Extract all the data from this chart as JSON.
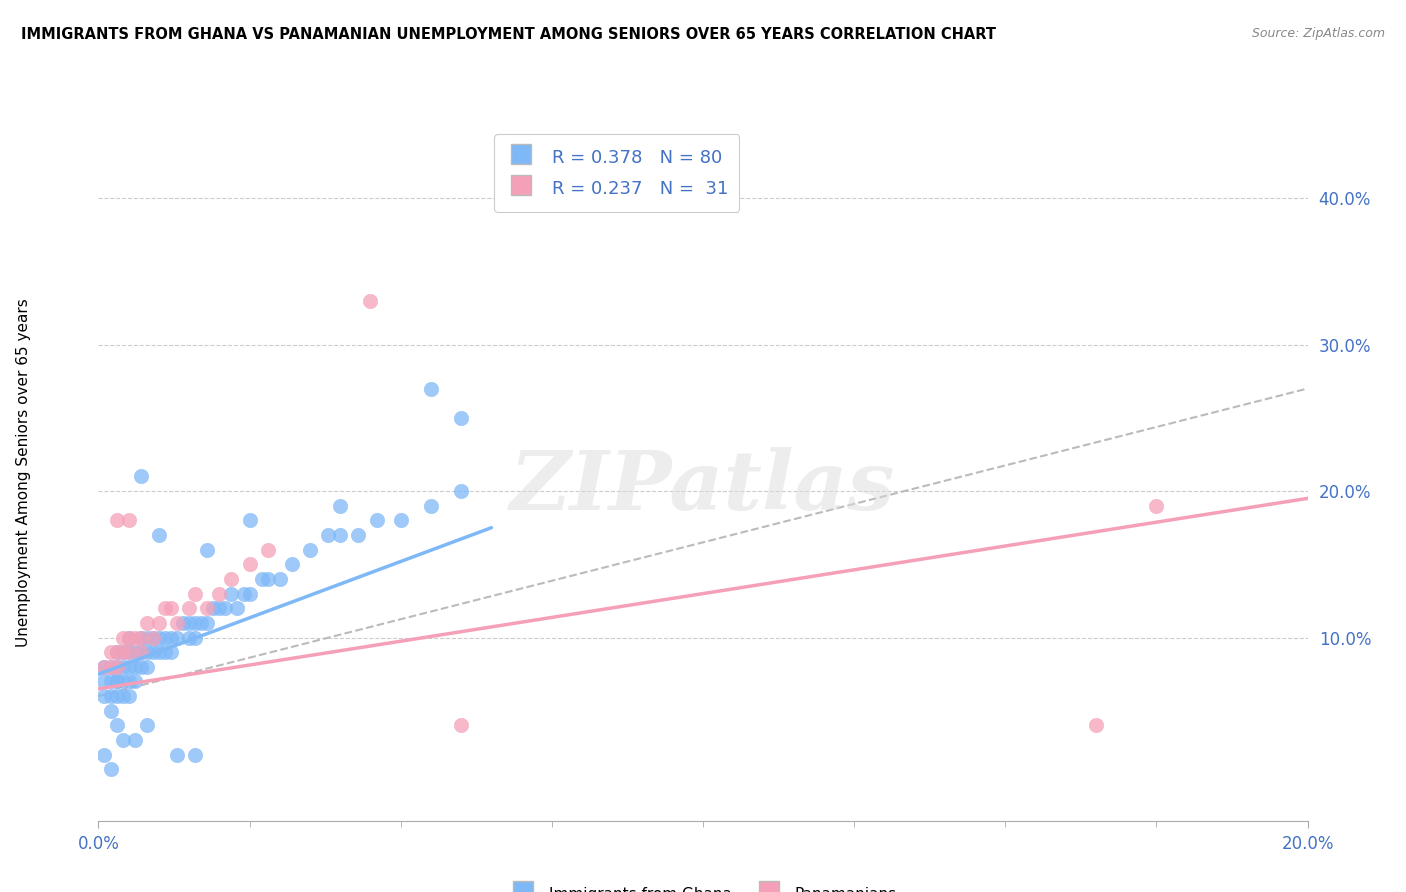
{
  "title": "IMMIGRANTS FROM GHANA VS PANAMANIAN UNEMPLOYMENT AMONG SENIORS OVER 65 YEARS CORRELATION CHART",
  "source": "Source: ZipAtlas.com",
  "ylabel": "Unemployment Among Seniors over 65 years",
  "xlim": [
    0.0,
    0.2
  ],
  "ylim": [
    -0.025,
    0.45
  ],
  "color_blue": "#7EB8F7",
  "color_pink": "#F5A0B8",
  "color_blue_dark": "#4472C4",
  "color_dashed": "#BBBBBB",
  "watermark_text": "ZIPatlas",
  "ghana_x": [
    0.001,
    0.001,
    0.001,
    0.002,
    0.002,
    0.002,
    0.002,
    0.003,
    0.003,
    0.003,
    0.003,
    0.003,
    0.004,
    0.004,
    0.004,
    0.004,
    0.005,
    0.005,
    0.005,
    0.005,
    0.005,
    0.006,
    0.006,
    0.006,
    0.007,
    0.007,
    0.007,
    0.008,
    0.008,
    0.008,
    0.009,
    0.009,
    0.01,
    0.01,
    0.011,
    0.011,
    0.012,
    0.012,
    0.013,
    0.014,
    0.015,
    0.015,
    0.016,
    0.016,
    0.017,
    0.018,
    0.019,
    0.02,
    0.021,
    0.022,
    0.023,
    0.024,
    0.025,
    0.027,
    0.028,
    0.03,
    0.032,
    0.035,
    0.038,
    0.04,
    0.043,
    0.046,
    0.05,
    0.055,
    0.06,
    0.04,
    0.025,
    0.018,
    0.01,
    0.007,
    0.003,
    0.004,
    0.006,
    0.008,
    0.055,
    0.06,
    0.013,
    0.016,
    0.001,
    0.002
  ],
  "ghana_y": [
    0.07,
    0.08,
    0.06,
    0.07,
    0.08,
    0.06,
    0.05,
    0.07,
    0.08,
    0.09,
    0.06,
    0.07,
    0.06,
    0.07,
    0.08,
    0.09,
    0.06,
    0.07,
    0.08,
    0.09,
    0.1,
    0.07,
    0.08,
    0.09,
    0.08,
    0.09,
    0.1,
    0.08,
    0.09,
    0.1,
    0.09,
    0.1,
    0.09,
    0.1,
    0.09,
    0.1,
    0.09,
    0.1,
    0.1,
    0.11,
    0.1,
    0.11,
    0.1,
    0.11,
    0.11,
    0.11,
    0.12,
    0.12,
    0.12,
    0.13,
    0.12,
    0.13,
    0.13,
    0.14,
    0.14,
    0.14,
    0.15,
    0.16,
    0.17,
    0.17,
    0.17,
    0.18,
    0.18,
    0.19,
    0.2,
    0.19,
    0.18,
    0.16,
    0.17,
    0.21,
    0.04,
    0.03,
    0.03,
    0.04,
    0.27,
    0.25,
    0.02,
    0.02,
    0.02,
    0.01
  ],
  "panama_x": [
    0.001,
    0.002,
    0.002,
    0.003,
    0.003,
    0.004,
    0.004,
    0.005,
    0.005,
    0.006,
    0.007,
    0.007,
    0.008,
    0.009,
    0.01,
    0.011,
    0.012,
    0.013,
    0.015,
    0.016,
    0.018,
    0.02,
    0.022,
    0.025,
    0.028,
    0.045,
    0.06,
    0.165,
    0.175,
    0.003,
    0.005
  ],
  "panama_y": [
    0.08,
    0.08,
    0.09,
    0.08,
    0.09,
    0.1,
    0.09,
    0.1,
    0.09,
    0.1,
    0.09,
    0.1,
    0.11,
    0.1,
    0.11,
    0.12,
    0.12,
    0.11,
    0.12,
    0.13,
    0.12,
    0.13,
    0.14,
    0.15,
    0.16,
    0.33,
    0.04,
    0.04,
    0.19,
    0.18,
    0.18
  ],
  "ghana_line_x": [
    0.0,
    0.065
  ],
  "ghana_line_y": [
    0.075,
    0.175
  ],
  "panama_line_x": [
    0.0,
    0.2
  ],
  "panama_line_y": [
    0.065,
    0.195
  ],
  "dash_line_x": [
    0.0,
    0.2
  ],
  "dash_line_y": [
    0.06,
    0.27
  ]
}
